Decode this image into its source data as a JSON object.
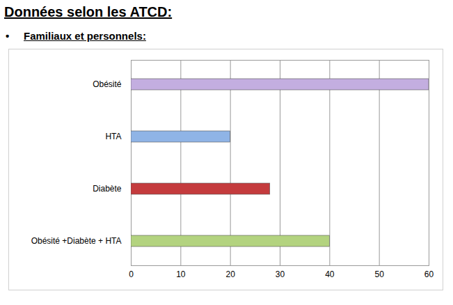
{
  "chart_data": {
    "type": "bar",
    "orientation": "horizontal",
    "title": "Données selon les ATCD:",
    "subtitle": "Familiaux et personnels:",
    "categories": [
      "Obésité",
      "HTA",
      "Diabète",
      "Obésité +Diabète + HTA"
    ],
    "values": [
      60,
      20,
      28,
      40
    ],
    "colors": [
      "#c3aee0",
      "#8fb4e6",
      "#c43b3d",
      "#b3d37f"
    ],
    "xlim": [
      0,
      60
    ],
    "xticks": [
      0,
      10,
      20,
      30,
      40,
      50,
      60
    ],
    "grid": true
  }
}
